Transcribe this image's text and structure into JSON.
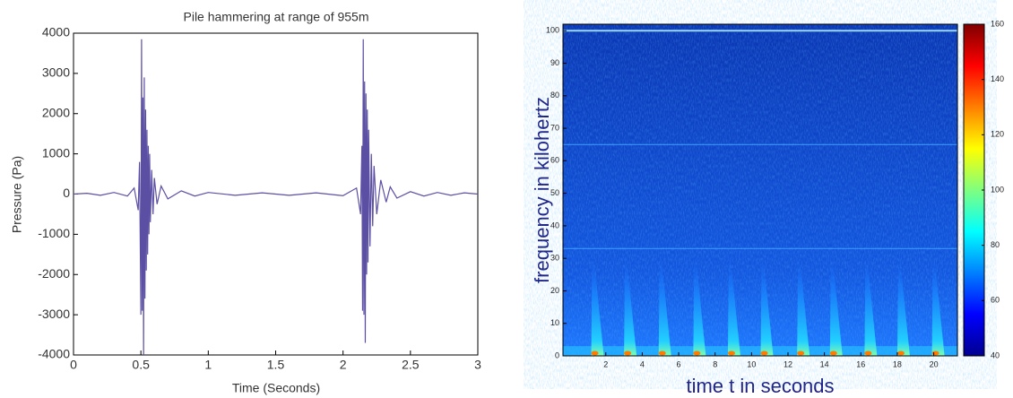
{
  "chart_data": [
    {
      "type": "line",
      "title": "Pile hammering at range of 955m",
      "x_label": "Time (Seconds)",
      "y_label": "Pressure (Pa)",
      "xlim": [
        0,
        3
      ],
      "xticks": [
        0,
        0.5,
        1,
        1.5,
        2,
        2.5,
        3
      ],
      "ylim": [
        -4000,
        4000
      ],
      "yticks": [
        -4000,
        -3000,
        -2000,
        -1000,
        0,
        1000,
        2000,
        3000,
        4000
      ],
      "series": [
        {
          "color": "#5b4fa3",
          "x": [
            0,
            0.1,
            0.2,
            0.3,
            0.4,
            0.45,
            0.48,
            0.49,
            0.5,
            0.505,
            0.51,
            0.515,
            0.52,
            0.525,
            0.53,
            0.535,
            0.54,
            0.545,
            0.55,
            0.555,
            0.56,
            0.565,
            0.57,
            0.58,
            0.59,
            0.6,
            0.62,
            0.65,
            0.7,
            0.8,
            0.9,
            1.0,
            1.2,
            1.4,
            1.6,
            1.8,
            2.0,
            2.1,
            2.13,
            2.14,
            2.145,
            2.15,
            2.155,
            2.16,
            2.165,
            2.17,
            2.175,
            2.18,
            2.185,
            2.19,
            2.2,
            2.21,
            2.22,
            2.23,
            2.25,
            2.28,
            2.32,
            2.35,
            2.4,
            2.5,
            2.6,
            2.7,
            2.8,
            2.9,
            3.0
          ],
          "values": [
            0,
            20,
            -30,
            40,
            -50,
            150,
            -400,
            800,
            -3000,
            3850,
            -2900,
            2400,
            -4000,
            2900,
            -2600,
            2100,
            -1900,
            1600,
            -1500,
            1200,
            -1000,
            1000,
            -700,
            600,
            -500,
            400,
            -250,
            200,
            -120,
            80,
            -50,
            40,
            -30,
            30,
            -30,
            30,
            -40,
            150,
            -500,
            1200,
            -2900,
            3850,
            -3000,
            2800,
            -3700,
            2500,
            -2000,
            2100,
            -1700,
            1600,
            -1300,
            1000,
            -800,
            700,
            -500,
            350,
            -200,
            180,
            -100,
            60,
            -50,
            40,
            -30,
            30,
            0
          ]
        }
      ]
    },
    {
      "type": "spectrogram",
      "x_label": "time t in seconds",
      "y_label": "frequency in kilohertz",
      "xlim": [
        -0.35,
        21.3
      ],
      "xticks": [
        2,
        4,
        6,
        8,
        10,
        12,
        14,
        16,
        18,
        20
      ],
      "ylim": [
        0,
        102
      ],
      "yticks": [
        0,
        10,
        20,
        30,
        40,
        50,
        60,
        70,
        80,
        90,
        100
      ],
      "strike_times": [
        1.3,
        3.1,
        5.0,
        6.9,
        8.8,
        10.6,
        12.6,
        14.4,
        16.3,
        18.1,
        20.0
      ],
      "tone_frequencies": [
        100,
        65,
        33
      ],
      "clim": [
        40,
        160
      ],
      "cticks": [
        40,
        60,
        80,
        100,
        120,
        140,
        160
      ]
    }
  ]
}
